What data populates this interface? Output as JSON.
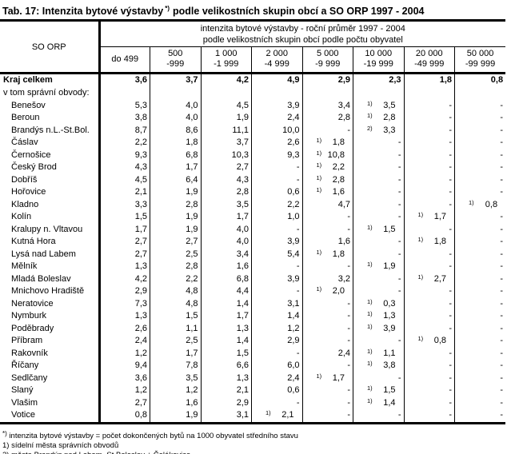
{
  "title": {
    "text_before_marker": "Tab. 17: Intenzita bytové výstavby",
    "marker": "*)",
    "text_after_marker": "podle velikostních skupin obcí a SO ORP 1997 - 2004"
  },
  "table": {
    "corner_header": "SO ORP",
    "group_header": {
      "line1": "intenzita bytové výstavby - roční průměr 1997 - 2004",
      "line2": "podle velikostních skupin obcí podle počtu obyvatel"
    },
    "columns": [
      {
        "line1": "do 499",
        "line2": ""
      },
      {
        "line1": "500",
        "line2": "-999"
      },
      {
        "line1": "1 000",
        "line2": "-1 999"
      },
      {
        "line1": "2 000",
        "line2": "-4 999"
      },
      {
        "line1": "5 000",
        "line2": "-9 999"
      },
      {
        "line1": "10 000",
        "line2": "-19 999"
      },
      {
        "line1": "20 000",
        "line2": "-49 999"
      },
      {
        "line1": "50 000",
        "line2": "-99 999"
      }
    ],
    "total_row": {
      "label": "Kraj celkem",
      "values": [
        "3,6",
        "3,7",
        "4,2",
        "4,9",
        "2,9",
        "2,3",
        "1,8",
        "0,8"
      ]
    },
    "section_label": "v tom správní obvody:",
    "rows": [
      {
        "label": "Benešov",
        "values": [
          "5,3",
          "4,0",
          "4,5",
          "3,9",
          "3,4",
          {
            "m": "1)",
            "v": "3,5"
          },
          "-",
          "-"
        ]
      },
      {
        "label": "Beroun",
        "values": [
          "3,8",
          "4,0",
          "1,9",
          "2,4",
          "2,8",
          {
            "m": "1)",
            "v": "2,8"
          },
          "-",
          "-"
        ]
      },
      {
        "label": "Brandýs n.L.-St.Bol.",
        "values": [
          "8,7",
          "8,6",
          "11,1",
          "10,0",
          "-",
          {
            "m": "2)",
            "v": "3,3"
          },
          "-",
          "-"
        ]
      },
      {
        "label": "Čáslav",
        "values": [
          "2,2",
          "1,8",
          "3,7",
          "2,6",
          {
            "m": "1)",
            "v": "1,8"
          },
          "-",
          "-",
          "-"
        ]
      },
      {
        "label": "Černošice",
        "values": [
          "9,3",
          "6,8",
          "10,3",
          "9,3",
          {
            "m": "1)",
            "v": "10,8"
          },
          "-",
          "-",
          "-"
        ]
      },
      {
        "label": "Český Brod",
        "values": [
          "4,3",
          "1,7",
          "2,7",
          "-",
          {
            "m": "1)",
            "v": "2,2"
          },
          "-",
          "-",
          "-"
        ]
      },
      {
        "label": "Dobříš",
        "values": [
          "4,5",
          "6,4",
          "4,3",
          "-",
          {
            "m": "1)",
            "v": "2,8"
          },
          "-",
          "-",
          "-"
        ]
      },
      {
        "label": "Hořovice",
        "values": [
          "2,1",
          "1,9",
          "2,8",
          "0,6",
          {
            "m": "1)",
            "v": "1,6"
          },
          "-",
          "-",
          "-"
        ]
      },
      {
        "label": "Kladno",
        "values": [
          "3,3",
          "2,8",
          "3,5",
          "2,2",
          "4,7",
          "-",
          "-",
          {
            "m": "1)",
            "v": "0,8"
          }
        ]
      },
      {
        "label": "Kolín",
        "values": [
          "1,5",
          "1,9",
          "1,7",
          "1,0",
          "-",
          "-",
          {
            "m": "1)",
            "v": "1,7"
          },
          "-"
        ]
      },
      {
        "label": "Kralupy n. Vltavou",
        "values": [
          "1,7",
          "1,9",
          "4,0",
          "-",
          "-",
          {
            "m": "1)",
            "v": "1,5"
          },
          "-",
          "-"
        ]
      },
      {
        "label": "Kutná Hora",
        "values": [
          "2,7",
          "2,7",
          "4,0",
          "3,9",
          "1,6",
          "-",
          {
            "m": "1)",
            "v": "1,8"
          },
          "-"
        ]
      },
      {
        "label": "Lysá nad Labem",
        "values": [
          "2,7",
          "2,5",
          "3,4",
          "5,4",
          {
            "m": "1)",
            "v": "1,8"
          },
          "-",
          "-",
          "-"
        ]
      },
      {
        "label": "Mělník",
        "values": [
          "1,3",
          "2,8",
          "1,6",
          "-",
          "-",
          {
            "m": "1)",
            "v": "1,9"
          },
          "-",
          "-"
        ]
      },
      {
        "label": "Mladá Boleslav",
        "values": [
          "4,2",
          "2,2",
          "6,8",
          "3,9",
          "3,2",
          "-",
          {
            "m": "1)",
            "v": "2,7"
          },
          "-"
        ]
      },
      {
        "label": "Mnichovo Hradiště",
        "values": [
          "2,9",
          "4,8",
          "4,4",
          "-",
          {
            "m": "1)",
            "v": "2,0"
          },
          "-",
          "-",
          "-"
        ]
      },
      {
        "label": "Neratovice",
        "values": [
          "7,3",
          "4,8",
          "1,4",
          "3,1",
          "-",
          {
            "m": "1)",
            "v": "0,3"
          },
          "-",
          "-"
        ]
      },
      {
        "label": "Nymburk",
        "values": [
          "1,3",
          "1,5",
          "1,7",
          "1,4",
          "-",
          {
            "m": "1)",
            "v": "1,3"
          },
          "-",
          "-"
        ]
      },
      {
        "label": "Poděbrady",
        "values": [
          "2,6",
          "1,1",
          "1,3",
          "1,2",
          "-",
          {
            "m": "1)",
            "v": "3,9"
          },
          "-",
          "-"
        ]
      },
      {
        "label": "Příbram",
        "values": [
          "2,4",
          "2,5",
          "1,4",
          "2,9",
          "-",
          "-",
          {
            "m": "1)",
            "v": "0,8"
          },
          "-"
        ]
      },
      {
        "label": "Rakovník",
        "values": [
          "1,2",
          "1,7",
          "1,5",
          "-",
          "2,4",
          {
            "m": "1)",
            "v": "1,1"
          },
          "-",
          "-"
        ]
      },
      {
        "label": "Říčany",
        "values": [
          "9,4",
          "7,8",
          "6,6",
          "6,0",
          "-",
          {
            "m": "1)",
            "v": "3,8"
          },
          "-",
          "-"
        ]
      },
      {
        "label": "Sedlčany",
        "values": [
          "3,6",
          "3,5",
          "1,3",
          "2,4",
          {
            "m": "1)",
            "v": "1,7"
          },
          "-",
          "-",
          "-"
        ]
      },
      {
        "label": "Slaný",
        "values": [
          "1,2",
          "1,2",
          "2,1",
          "0,6",
          "-",
          {
            "m": "1)",
            "v": "1,5"
          },
          "-",
          "-"
        ]
      },
      {
        "label": "Vlašim",
        "values": [
          "2,7",
          "1,6",
          "2,9",
          "-",
          "-",
          {
            "m": "1)",
            "v": "1,4"
          },
          "-",
          "-"
        ]
      },
      {
        "label": "Votice",
        "values": [
          "0,8",
          "1,9",
          "3,1",
          {
            "m": "1)",
            "v": "2,1"
          },
          "-",
          "-",
          "-",
          "-"
        ]
      }
    ]
  },
  "footnotes": [
    {
      "marker": "*)",
      "text": "intenzita bytové výstavby = počet dokončených bytů na 1000 obyvatel středního stavu"
    },
    {
      "marker": "1)",
      "text": "sídelní města správních obvodů"
    },
    {
      "marker": "2)",
      "text": "města Brandýs nad Labem- St.Boleslav + Čelákovice"
    }
  ]
}
